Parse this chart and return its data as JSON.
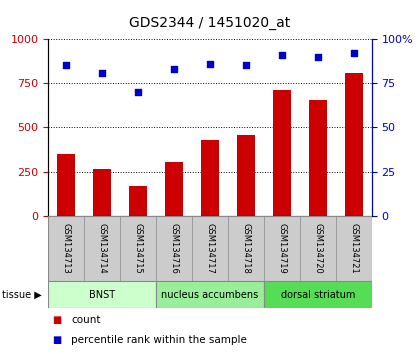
{
  "title": "GDS2344 / 1451020_at",
  "samples": [
    "GSM134713",
    "GSM134714",
    "GSM134715",
    "GSM134716",
    "GSM134717",
    "GSM134718",
    "GSM134719",
    "GSM134720",
    "GSM134721"
  ],
  "counts": [
    350,
    265,
    170,
    305,
    430,
    455,
    710,
    655,
    810
  ],
  "percentiles": [
    85,
    81,
    70,
    83,
    86,
    85,
    91,
    90,
    92
  ],
  "groups": [
    {
      "label": "BNST",
      "start": 0,
      "end": 3,
      "color": "#ccffcc"
    },
    {
      "label": "nucleus accumbens",
      "start": 3,
      "end": 6,
      "color": "#99ee99"
    },
    {
      "label": "dorsal striatum",
      "start": 6,
      "end": 9,
      "color": "#55dd55"
    }
  ],
  "bar_color": "#cc0000",
  "dot_color": "#0000cc",
  "left_axis_color": "#cc0000",
  "right_axis_color": "#0000cc",
  "ylim_left": [
    0,
    1000
  ],
  "ylim_right": [
    0,
    100
  ],
  "yticks_left": [
    0,
    250,
    500,
    750,
    1000
  ],
  "yticks_right": [
    0,
    25,
    50,
    75,
    100
  ],
  "tissue_label": "tissue",
  "legend_count": "count",
  "legend_percentile": "percentile rank within the sample",
  "xlabel_area_color": "#cccccc",
  "bar_width": 0.5
}
